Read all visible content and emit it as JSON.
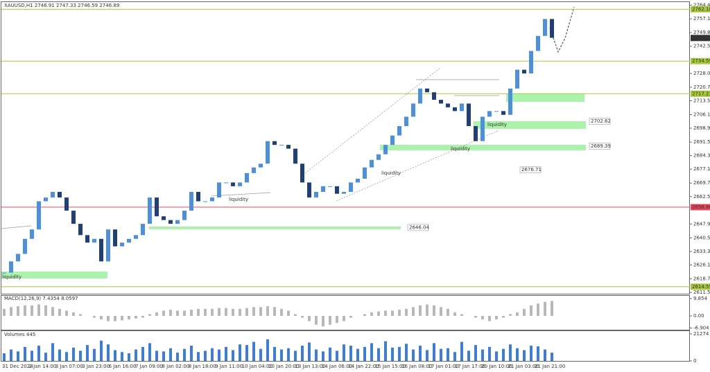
{
  "chart_data": [
    {
      "type": "candlestick",
      "title": "XAUUSD,H1  2746.91 2747.33 2746.59 2746.89",
      "x_labels": [
        "31 Dec 2024",
        "2 Jan 14:00",
        "3 Jan 07:00",
        "3 Jan 23:00",
        "6 Jan 16:00",
        "7 Jan 09:00",
        "8 Jan 02:00",
        "8 Jan 18:00",
        "9 Jan 11:00",
        "10 Jan 04:00",
        "10 Jan 20:00",
        "13 Jan 13:00",
        "14 Jan 06:00",
        "14 Jan 22:00",
        "15 Jan 15:00",
        "16 Jan 08:00",
        "17 Jan 01:00",
        "17 Jan 17:00",
        "20 Jan 10:00",
        "21 Jan 03:00",
        "21 Jan 21:00"
      ],
      "close": [
        2622,
        2628,
        2632,
        2640,
        2645,
        2660,
        2662,
        2665,
        2662,
        2655,
        2648,
        2642,
        2638,
        2640,
        2628,
        2645,
        2636,
        2638,
        2640,
        2642,
        2648,
        2662,
        2652,
        2650,
        2648,
        2650,
        2655,
        2665,
        2660,
        2660,
        2662,
        2670,
        2670,
        2668,
        2670,
        2675,
        2678,
        2680,
        2692,
        2690,
        2690,
        2688,
        2680,
        2670,
        2662,
        2665,
        2668,
        2668,
        2664,
        2665,
        2670,
        2672,
        2678,
        2682,
        2685,
        2690,
        2695,
        2700,
        2705,
        2712,
        2720,
        2718,
        2714,
        2712,
        2710,
        2708,
        2712,
        2700,
        2692,
        2705,
        2708,
        2708,
        2706,
        2720,
        2730,
        2728,
        2740,
        2748,
        2757,
        2747
      ],
      "up_color": "#4a8fe0",
      "down_color": "#1f3f7a",
      "ylim": [
        2610.8,
        2766.0
      ],
      "yticks": [
        {
          "value": 2764.4,
          "label": "2764.40"
        },
        {
          "value": 2757.1,
          "label": "2757.10"
        },
        {
          "value": 2749.8,
          "label": "2749.80"
        },
        {
          "value": 2742.5,
          "label": "2742.50"
        },
        {
          "value": 2728,
          "label": "2728.00"
        },
        {
          "value": 2720.7,
          "label": "2720.70"
        },
        {
          "value": 2713.5,
          "label": "2713.50"
        },
        {
          "value": 2706.1,
          "label": "2706.10"
        },
        {
          "value": 2698.9,
          "label": "2698.90"
        },
        {
          "value": 2691.5,
          "label": "2691.50"
        },
        {
          "value": 2684.3,
          "label": "2684.30"
        },
        {
          "value": 2677.1,
          "label": "2677.10"
        },
        {
          "value": 2669.7,
          "label": "2669.70"
        },
        {
          "value": 2662.5,
          "label": "2662.50"
        },
        {
          "value": 2647.9,
          "label": "2647.90"
        },
        {
          "value": 2640.5,
          "label": "2640.50"
        },
        {
          "value": 2633.3,
          "label": "2633.30"
        },
        {
          "value": 2626.1,
          "label": "2626.10"
        },
        {
          "value": 2618.7,
          "label": "2618.70"
        },
        {
          "value": 2611.5,
          "label": "2611.50"
        }
      ],
      "levels": [
        {
          "value": 2762.18,
          "color": "#a8c83c"
        },
        {
          "value": 2734.59,
          "color": "#a8c83c"
        },
        {
          "value": 2717.23,
          "color": "#a8c83c"
        },
        {
          "value": 2656.86,
          "color": "#e8455a"
        },
        {
          "value": 2614.55,
          "color": "#a8c83c"
        }
      ],
      "current_price": 2746.89,
      "marked_prices": [
        2702.62,
        2689.39,
        2676.71,
        2646.04
      ],
      "annotations": [
        "liquidity",
        "liquidity",
        "liquidity",
        "liquidity",
        "liquidity"
      ]
    },
    {
      "type": "bar",
      "title": "MACD(12,26,9) 7.4354 8.0597",
      "color": "#b8b8b8",
      "values": [
        4,
        5,
        5.5,
        6,
        6,
        6.5,
        6,
        5,
        4,
        3,
        2,
        1,
        0,
        -1,
        -2,
        -3,
        -3,
        -2.5,
        -2,
        -1.5,
        -1,
        1,
        2,
        3,
        3.5,
        3,
        3,
        3.5,
        4,
        4,
        4,
        4.5,
        4.5,
        4,
        4,
        4.5,
        5,
        5,
        5.5,
        5,
        4,
        3,
        1,
        -1,
        -3,
        -5,
        -6,
        -5,
        -4,
        -3,
        -1,
        0,
        1,
        2,
        2.5,
        3,
        3,
        3.5,
        4,
        5,
        6,
        6.5,
        6,
        5,
        4,
        2,
        1,
        0,
        -1,
        -2,
        -3,
        -2,
        -1,
        1,
        2,
        4,
        6,
        7,
        8,
        8.5
      ],
      "ylim": [
        -7.88,
        11.43
      ],
      "yticks": [
        9.854,
        {
          "value": 0,
          "label": "0.00"
        },
        -6.904
      ]
    },
    {
      "type": "bar",
      "title": "Volumes 445",
      "color": "#3b7dd8",
      "values": [
        6000,
        9000,
        7500,
        11000,
        8000,
        12000,
        6500,
        14000,
        9000,
        7000,
        10500,
        8000,
        12500,
        9500,
        16000,
        13000,
        8500,
        7000,
        6000,
        9000,
        11000,
        14000,
        8000,
        7500,
        10000,
        6500,
        9500,
        12000,
        7000,
        8000,
        10000,
        9000,
        11000,
        8500,
        13000,
        12500,
        15000,
        9500,
        17000,
        11000,
        9000,
        10000,
        8000,
        12000,
        14500,
        9000,
        7500,
        10500,
        8000,
        13000,
        12000,
        9500,
        11000,
        14000,
        10000,
        15500,
        10500,
        11000,
        13500,
        9000,
        12000,
        8500,
        14000,
        9500,
        10000,
        7000,
        15000,
        8000,
        12500,
        9000,
        11000,
        7500,
        9500,
        13000,
        10000,
        8500,
        12000,
        11500,
        9000,
        6500
      ],
      "ylim": [
        0,
        21274
      ],
      "yticks": [
        21274,
        0
      ]
    }
  ]
}
